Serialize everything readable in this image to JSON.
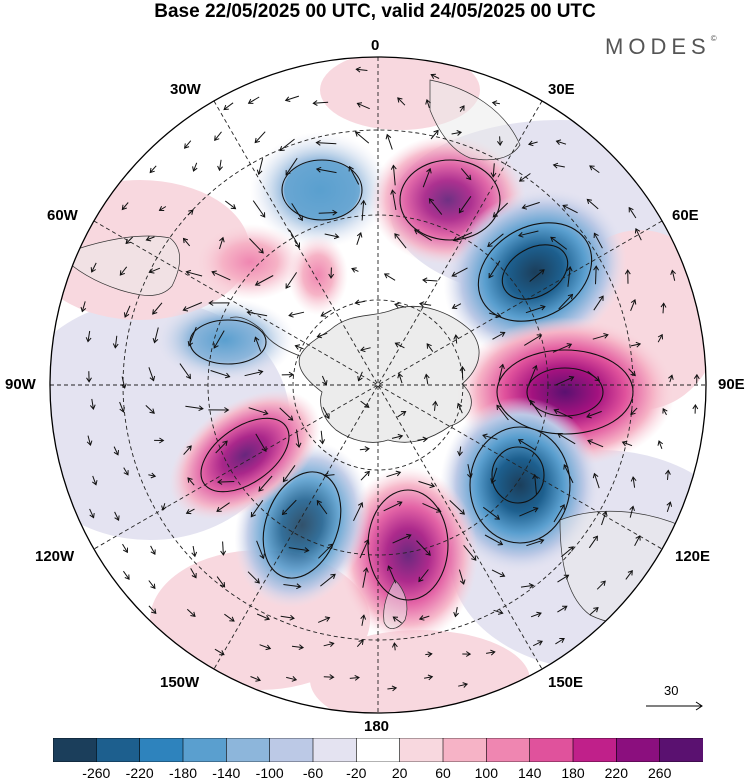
{
  "title": "Base 22/05/2025 00 UTC, valid 24/05/2025 00 UTC",
  "logo": {
    "text": "MODES",
    "mark": "©"
  },
  "map": {
    "projection": "south-polar-stereographic",
    "longitude_labels": {
      "top": "0",
      "bottom": "180",
      "left": "90W",
      "right": "90E",
      "nw30": "30W",
      "ne30": "30E",
      "wnw60": "60W",
      "ene60": "60E",
      "wsw120": "120W",
      "ese120": "120E",
      "ssw150": "150W",
      "sse150": "150E"
    },
    "vector_reference": {
      "label": "30"
    },
    "anomaly_centers": [
      {
        "sign": "negative",
        "lon_label": "30W",
        "strength": -160
      },
      {
        "sign": "positive",
        "lon_label": "30E",
        "strength": 180
      },
      {
        "sign": "negative",
        "lon_label": "60E",
        "strength": -260
      },
      {
        "sign": "positive",
        "lon_label": "90E",
        "strength": 260
      },
      {
        "sign": "negative",
        "lon_label": "120E",
        "strength": -260
      },
      {
        "sign": "positive",
        "lon_label": "180",
        "strength": 200
      },
      {
        "sign": "negative",
        "lon_label": "150W",
        "strength": -220
      },
      {
        "sign": "positive",
        "lon_label": "120W",
        "strength": 220
      },
      {
        "sign": "negative",
        "lon_label": "90W",
        "strength": -140
      },
      {
        "sign": "positive",
        "lon_label": "60W",
        "strength": 100
      }
    ]
  },
  "colorbar": {
    "labels": [
      "-260",
      "-220",
      "-180",
      "-140",
      "-100",
      "-60",
      "-20",
      "20",
      "60",
      "100",
      "140",
      "180",
      "220",
      "260"
    ],
    "colors": [
      "#1b3e5b",
      "#1d5f8e",
      "#2e83bd",
      "#5a9fcf",
      "#8db6db",
      "#bcc9e6",
      "#e4e3f1",
      "#ffffff",
      "#f8d8df",
      "#f6b3c6",
      "#ef86b1",
      "#e0529c",
      "#c0208a",
      "#8b0f7e",
      "#5a1170"
    ]
  }
}
